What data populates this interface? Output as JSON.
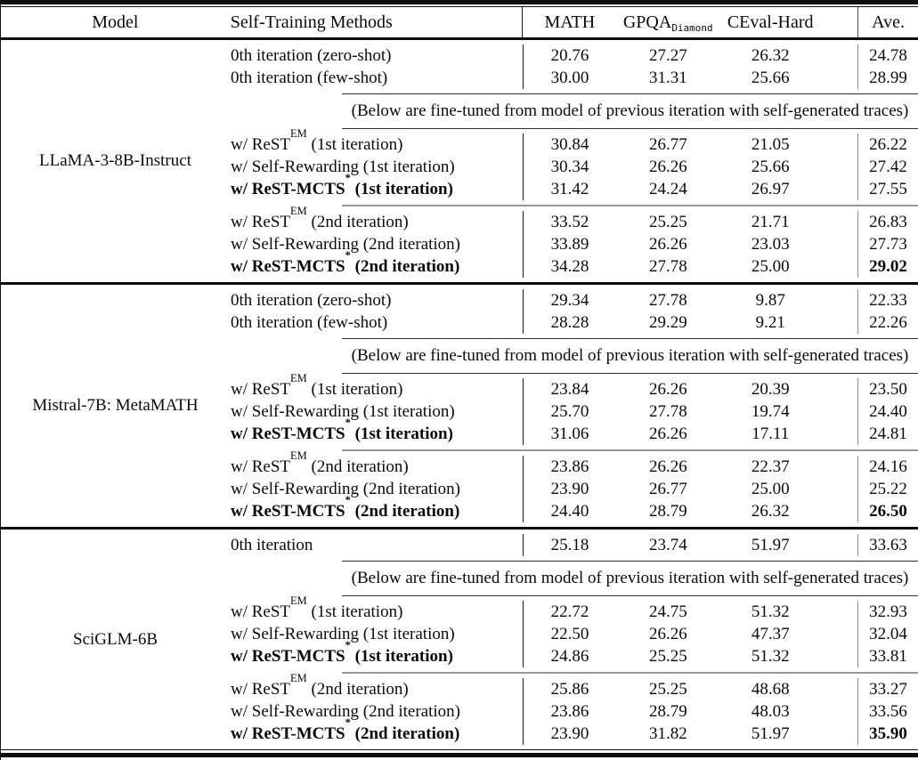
{
  "header": {
    "model": "Model",
    "methods": "Self-Training Methods",
    "math": "MATH",
    "gpqa": "GPQA",
    "gpqa_sub": "Diamond",
    "ceval": "CEval-Hard",
    "ave": "Ave."
  },
  "note": "(Below are fine-tuned from model of previous iteration with self-generated traces)",
  "colors": {
    "text": "#0b0b0b",
    "rule_black": "#0d0d0d",
    "rule_gray": "#979797"
  },
  "sections": [
    {
      "model": "LLaMA-3-8B-Instruct",
      "baseline_rows": [
        {
          "label_pre": "0th iteration (zero-shot)",
          "label_sup": "",
          "label_post": "",
          "bold": false,
          "ave_bold": false,
          "values": [
            "20.76",
            "27.27",
            "26.32",
            "24.78"
          ]
        },
        {
          "label_pre": "0th iteration (few-shot)",
          "label_sup": "",
          "label_post": "",
          "bold": false,
          "ave_bold": false,
          "values": [
            "30.00",
            "31.31",
            "25.66",
            "28.99"
          ]
        }
      ],
      "iter1_rows": [
        {
          "label_pre": "w/ ReST",
          "label_sup": "EM",
          "label_post": " (1st iteration)",
          "bold": false,
          "ave_bold": false,
          "values": [
            "30.84",
            "26.77",
            "21.05",
            "26.22"
          ]
        },
        {
          "label_pre": "w/ Self-Rewarding (1st iteration)",
          "label_sup": "",
          "label_post": "",
          "bold": false,
          "ave_bold": false,
          "values": [
            "30.34",
            "26.26",
            "25.66",
            "27.42"
          ]
        },
        {
          "label_pre": "w/ ReST-MCTS",
          "label_sup": "*",
          "label_post": " (1st iteration)",
          "bold": true,
          "ave_bold": false,
          "values": [
            "31.42",
            "24.24",
            "26.97",
            "27.55"
          ]
        }
      ],
      "iter2_rows": [
        {
          "label_pre": "w/ ReST",
          "label_sup": "EM",
          "label_post": " (2nd iteration)",
          "bold": false,
          "ave_bold": false,
          "values": [
            "33.52",
            "25.25",
            "21.71",
            "26.83"
          ]
        },
        {
          "label_pre": "w/ Self-Rewarding (2nd iteration)",
          "label_sup": "",
          "label_post": "",
          "bold": false,
          "ave_bold": false,
          "values": [
            "33.89",
            "26.26",
            "23.03",
            "27.73"
          ]
        },
        {
          "label_pre": "w/ ReST-MCTS",
          "label_sup": "*",
          "label_post": " (2nd iteration)",
          "bold": true,
          "ave_bold": true,
          "values": [
            "34.28",
            "27.78",
            "25.00",
            "29.02"
          ]
        }
      ]
    },
    {
      "model": "Mistral-7B: MetaMATH",
      "baseline_rows": [
        {
          "label_pre": "0th iteration (zero-shot)",
          "label_sup": "",
          "label_post": "",
          "bold": false,
          "ave_bold": false,
          "values": [
            "29.34",
            "27.78",
            "9.87",
            "22.33"
          ]
        },
        {
          "label_pre": "0th iteration (few-shot)",
          "label_sup": "",
          "label_post": "",
          "bold": false,
          "ave_bold": false,
          "values": [
            "28.28",
            "29.29",
            "9.21",
            "22.26"
          ]
        }
      ],
      "iter1_rows": [
        {
          "label_pre": "w/ ReST",
          "label_sup": "EM",
          "label_post": " (1st iteration)",
          "bold": false,
          "ave_bold": false,
          "values": [
            "23.84",
            "26.26",
            "20.39",
            "23.50"
          ]
        },
        {
          "label_pre": "w/ Self-Rewarding (1st iteration)",
          "label_sup": "",
          "label_post": "",
          "bold": false,
          "ave_bold": false,
          "values": [
            "25.70",
            "27.78",
            "19.74",
            "24.40"
          ]
        },
        {
          "label_pre": "w/ ReST-MCTS",
          "label_sup": "*",
          "label_post": " (1st iteration)",
          "bold": true,
          "ave_bold": false,
          "values": [
            "31.06",
            "26.26",
            "17.11",
            "24.81"
          ]
        }
      ],
      "iter2_rows": [
        {
          "label_pre": "w/ ReST",
          "label_sup": "EM",
          "label_post": " (2nd iteration)",
          "bold": false,
          "ave_bold": false,
          "values": [
            "23.86",
            "26.26",
            "22.37",
            "24.16"
          ]
        },
        {
          "label_pre": "w/ Self-Rewarding (2nd iteration)",
          "label_sup": "",
          "label_post": "",
          "bold": false,
          "ave_bold": false,
          "values": [
            "23.90",
            "26.77",
            "25.00",
            "25.22"
          ]
        },
        {
          "label_pre": "w/ ReST-MCTS",
          "label_sup": "*",
          "label_post": " (2nd iteration)",
          "bold": true,
          "ave_bold": true,
          "values": [
            "24.40",
            "28.79",
            "26.32",
            "26.50"
          ]
        }
      ]
    },
    {
      "model": "SciGLM-6B",
      "baseline_rows": [
        {
          "label_pre": "0th iteration",
          "label_sup": "",
          "label_post": "",
          "bold": false,
          "ave_bold": false,
          "values": [
            "25.18",
            "23.74",
            "51.97",
            "33.63"
          ]
        }
      ],
      "iter1_rows": [
        {
          "label_pre": "w/ ReST",
          "label_sup": "EM",
          "label_post": " (1st iteration)",
          "bold": false,
          "ave_bold": false,
          "values": [
            "22.72",
            "24.75",
            "51.32",
            "32.93"
          ]
        },
        {
          "label_pre": "w/ Self-Rewarding (1st iteration)",
          "label_sup": "",
          "label_post": "",
          "bold": false,
          "ave_bold": false,
          "values": [
            "22.50",
            "26.26",
            "47.37",
            "32.04"
          ]
        },
        {
          "label_pre": "w/ ReST-MCTS",
          "label_sup": "*",
          "label_post": " (1st iteration)",
          "bold": true,
          "ave_bold": false,
          "values": [
            "24.86",
            "25.25",
            "51.32",
            "33.81"
          ]
        }
      ],
      "iter2_rows": [
        {
          "label_pre": "w/ ReST",
          "label_sup": "EM",
          "label_post": " (2nd iteration)",
          "bold": false,
          "ave_bold": false,
          "values": [
            "25.86",
            "25.25",
            "48.68",
            "33.27"
          ]
        },
        {
          "label_pre": "w/ Self-Rewarding (2nd iteration)",
          "label_sup": "",
          "label_post": "",
          "bold": false,
          "ave_bold": false,
          "values": [
            "23.86",
            "28.79",
            "48.03",
            "33.56"
          ]
        },
        {
          "label_pre": "w/ ReST-MCTS",
          "label_sup": "*",
          "label_post": " (2nd iteration)",
          "bold": true,
          "ave_bold": true,
          "values": [
            "23.90",
            "31.82",
            "51.97",
            "35.90"
          ]
        }
      ]
    }
  ]
}
